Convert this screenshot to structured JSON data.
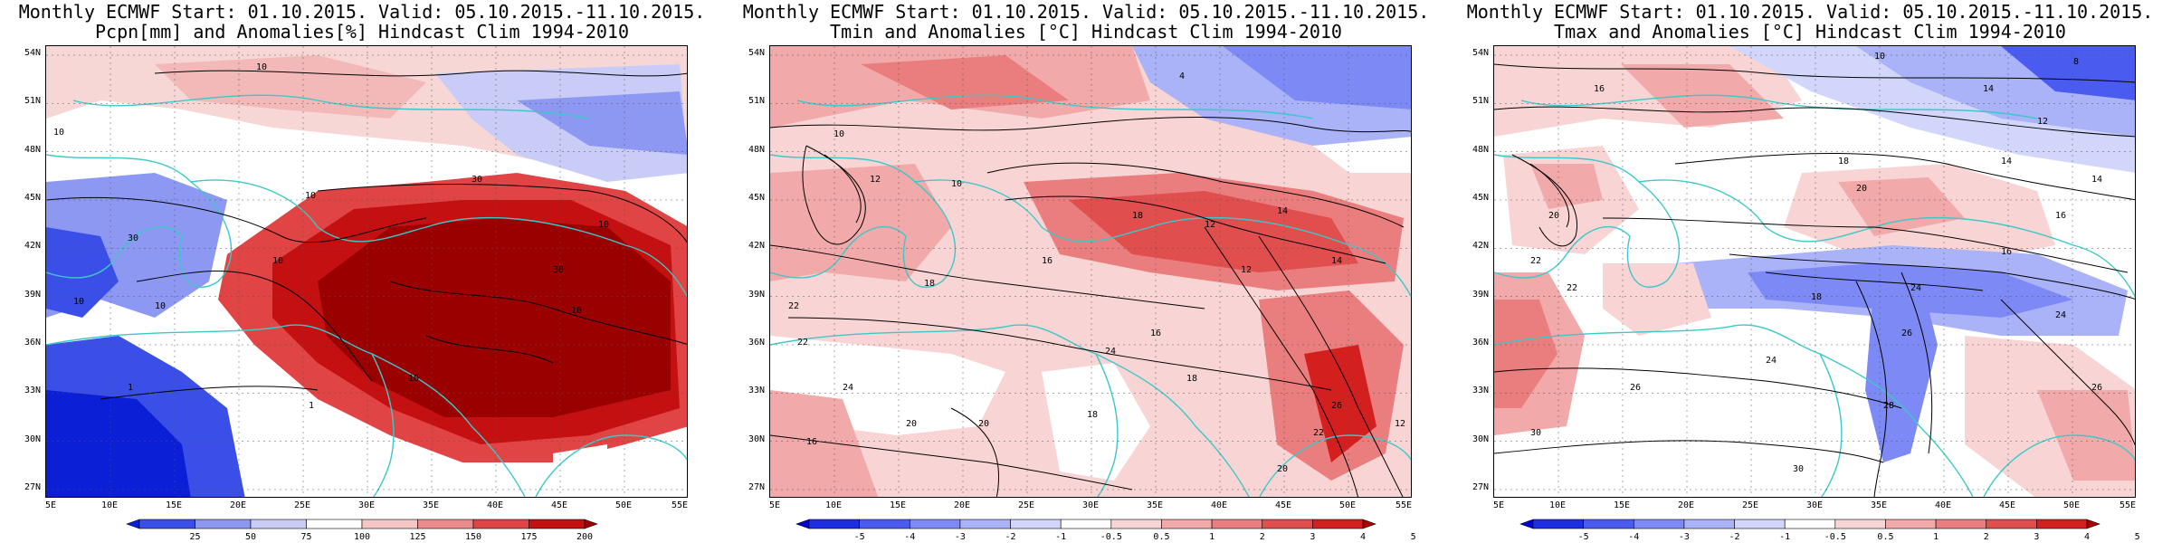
{
  "panels": [
    {
      "title_line1": "Monthly ECMWF Start: 01.10.2015. Valid: 05.10.2015.-11.10.2015.",
      "title_line2": "Pcpn[mm] and Anomalies[%] Hindcast Clim 1994-2010",
      "scheme": "precip",
      "lat_labels": [
        "54N",
        "51N",
        "48N",
        "45N",
        "42N",
        "39N",
        "36N",
        "33N",
        "30N",
        "27N"
      ],
      "lon_labels": [
        "5E",
        "10E",
        "15E",
        "20E",
        "25E",
        "30E",
        "35E",
        "40E",
        "45E",
        "50E",
        "55E"
      ],
      "colorbar": {
        "labels": [
          "25",
          "50",
          "75",
          "100",
          "125",
          "150",
          "175",
          "200"
        ],
        "colors": [
          "#0a1fd6",
          "#3a4fe8",
          "#8d98f2",
          "#c9ccf7",
          "#ffffff",
          "#f5c6c6",
          "#ec8b8b",
          "#e04444",
          "#c41010",
          "#9b0000"
        ]
      },
      "contour_labels": [
        "10",
        "10",
        "30",
        "10",
        "30",
        "10",
        "10",
        "1",
        "1",
        "10",
        "30",
        "10",
        "10",
        "10"
      ]
    },
    {
      "title_line1": "Monthly ECMWF Start: 01.10.2015. Valid: 05.10.2015.-11.10.2015.",
      "title_line2": "Tmin and Anomalies [°C] Hindcast Clim 1994-2010",
      "scheme": "tmin",
      "lat_labels": [
        "54N",
        "51N",
        "48N",
        "45N",
        "42N",
        "39N",
        "36N",
        "33N",
        "30N",
        "27N"
      ],
      "lon_labels": [
        "5E",
        "10E",
        "15E",
        "20E",
        "25E",
        "30E",
        "35E",
        "40E",
        "45E",
        "50E",
        "55E"
      ],
      "colorbar": {
        "labels": [
          "-5",
          "-4",
          "-3",
          "-2",
          "-1",
          "-0.5",
          "0.5",
          "1",
          "2",
          "3",
          "4",
          "5"
        ],
        "colors": [
          "#0000c8",
          "#1c2fe0",
          "#4a5cf0",
          "#7d8af5",
          "#aab2f8",
          "#d2d6fb",
          "#ffffff",
          "#f9d4d4",
          "#f2a9a9",
          "#ea7d7d",
          "#e04e4e",
          "#d41f1f",
          "#a80000"
        ]
      },
      "contour_labels": [
        "4",
        "10",
        "12",
        "10",
        "18",
        "16",
        "12",
        "14",
        "18",
        "22",
        "24",
        "22",
        "16",
        "18",
        "20",
        "18",
        "24",
        "26",
        "20",
        "14",
        "12",
        "16",
        "20",
        "22",
        "12"
      ]
    },
    {
      "title_line1": "Monthly ECMWF Start: 01.10.2015. Valid: 05.10.2015.-11.10.2015.",
      "title_line2": "Tmax and Anomalies [°C] Hindcast Clim 1994-2010",
      "scheme": "tmax",
      "lat_labels": [
        "54N",
        "51N",
        "48N",
        "45N",
        "42N",
        "39N",
        "36N",
        "33N",
        "30N",
        "27N"
      ],
      "lon_labels": [
        "5E",
        "10E",
        "15E",
        "20E",
        "25E",
        "30E",
        "35E",
        "40E",
        "45E",
        "50E",
        "55E"
      ],
      "colorbar": {
        "labels": [
          "-5",
          "-4",
          "-3",
          "-2",
          "-1",
          "-0.5",
          "0.5",
          "1",
          "2",
          "3",
          "4",
          "5"
        ],
        "colors": [
          "#0000c8",
          "#1c2fe0",
          "#4a5cf0",
          "#7d8af5",
          "#aab2f8",
          "#d2d6fb",
          "#ffffff",
          "#f9d4d4",
          "#f2a9a9",
          "#ea7d7d",
          "#e04e4e",
          "#d41f1f",
          "#a80000"
        ]
      },
      "contour_labels": [
        "10",
        "8",
        "12",
        "14",
        "16",
        "18",
        "14",
        "16",
        "20",
        "22",
        "24",
        "18",
        "20",
        "26",
        "24",
        "26",
        "28",
        "30",
        "30",
        "26",
        "14",
        "16",
        "22",
        "24"
      ]
    }
  ]
}
